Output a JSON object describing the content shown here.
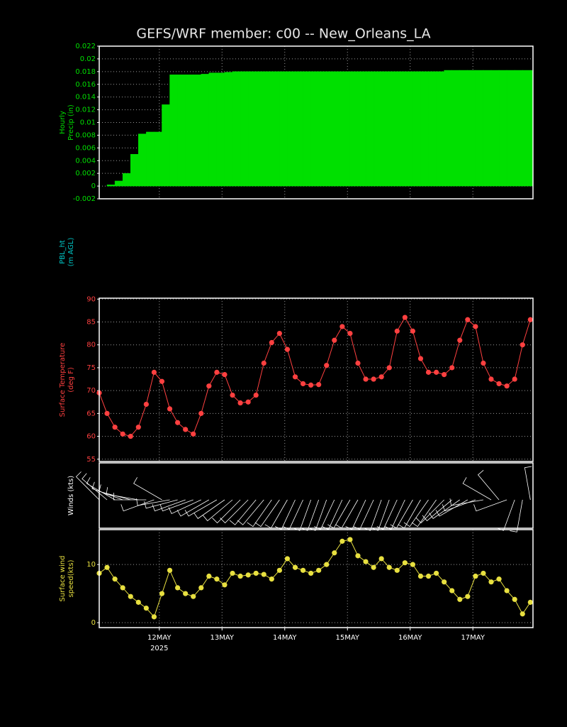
{
  "title": "GEFS/WRF  member: c00 -- New_Orleans_LA",
  "chart_data": [
    {
      "type": "bar",
      "ylabel": [
        "Hourly",
        "Precip (in)"
      ],
      "color": "#00e000",
      "grid": true,
      "x": [
        1,
        4,
        7,
        10,
        13,
        16,
        19,
        22,
        25,
        28,
        31,
        34,
        37,
        40,
        43,
        46,
        49,
        52,
        55,
        58,
        61,
        64,
        67,
        70,
        73,
        76,
        79,
        82,
        85,
        88,
        91,
        94,
        97,
        100,
        103,
        106,
        109,
        112,
        115,
        118,
        121,
        124,
        127,
        130,
        133,
        136,
        139,
        142,
        145,
        148,
        151,
        154,
        157,
        160,
        163,
        166
      ],
      "xlim": [
        1,
        167
      ],
      "xticks": [
        24,
        48,
        72,
        96,
        120,
        144
      ],
      "ylim": [
        -0.002,
        0.022
      ],
      "yticks": [
        -0.002,
        0,
        0.002,
        0.004,
        0.006,
        0.008,
        0.01,
        0.012,
        0.014,
        0.016,
        0.018,
        0.02,
        0.022
      ],
      "values": [
        0,
        0.0002,
        0.0008,
        0.002,
        0.005,
        0.0082,
        0.0085,
        0.0085,
        0.0128,
        0.0175,
        0.0175,
        0.0175,
        0.0175,
        0.0176,
        0.0178,
        0.0178,
        0.0179,
        0.018,
        0.018,
        0.018,
        0.018,
        0.018,
        0.018,
        0.018,
        0.018,
        0.018,
        0.018,
        0.018,
        0.018,
        0.018,
        0.018,
        0.018,
        0.018,
        0.018,
        0.018,
        0.018,
        0.018,
        0.018,
        0.018,
        0.018,
        0.018,
        0.018,
        0.018,
        0.018,
        0.0182,
        0.0182,
        0.0182,
        0.0182,
        0.0182,
        0.0182,
        0.0182,
        0.0182,
        0.0182,
        0.0182,
        0.0182,
        0.0182
      ]
    },
    {
      "type": "empty",
      "ylabel": [
        "PBL_ht",
        "(m AGL)"
      ],
      "color": "#00c8c8"
    },
    {
      "type": "line",
      "ylabel": [
        "Surface Temperature",
        "(deg F)"
      ],
      "color": "#ff4040",
      "grid": true,
      "x": [
        1,
        4,
        7,
        10,
        13,
        16,
        19,
        22,
        25,
        28,
        31,
        34,
        37,
        40,
        43,
        46,
        49,
        52,
        55,
        58,
        61,
        64,
        67,
        70,
        73,
        76,
        79,
        82,
        85,
        88,
        91,
        94,
        97,
        100,
        103,
        106,
        109,
        112,
        115,
        118,
        121,
        124,
        127,
        130,
        133,
        136,
        139,
        142,
        145,
        148,
        151,
        154,
        157,
        160,
        163,
        166
      ],
      "xlim": [
        1,
        167
      ],
      "xticks": [
        24,
        48,
        72,
        96,
        120,
        144
      ],
      "ylim": [
        54.5,
        90.2
      ],
      "yticks": [
        55,
        60,
        65,
        70,
        75,
        80,
        85,
        90
      ],
      "values": [
        69.5,
        65,
        62,
        60.5,
        60,
        62,
        67,
        74,
        72,
        66,
        63,
        61.5,
        60.5,
        65,
        71,
        74,
        73.5,
        69,
        67.3,
        67.5,
        69,
        76,
        80.5,
        82.5,
        79,
        73,
        71.5,
        71.2,
        71.3,
        75.5,
        81,
        84,
        82.5,
        76,
        72.5,
        72.5,
        73,
        75,
        83,
        86,
        83,
        77,
        74,
        74,
        73.5,
        75,
        81,
        85.5,
        84,
        76,
        72.5,
        71.5,
        71,
        72.5,
        80,
        85.5
      ]
    },
    {
      "type": "barbs",
      "ylabel": [
        "Winds (kts)"
      ],
      "color": "#ffffff",
      "grid": false,
      "x": [
        1,
        4,
        7,
        10,
        13,
        16,
        19,
        22,
        25,
        28,
        31,
        34,
        37,
        40,
        43,
        46,
        49,
        52,
        55,
        58,
        61,
        64,
        67,
        70,
        73,
        76,
        79,
        82,
        85,
        88,
        91,
        94,
        97,
        100,
        103,
        106,
        109,
        112,
        115,
        118,
        121,
        124,
        127,
        130,
        133,
        136,
        139,
        142,
        145,
        148,
        151,
        154,
        157,
        160,
        163,
        166
      ],
      "xlim": [
        1,
        167
      ],
      "directions": [
        315,
        310,
        300,
        290,
        285,
        280,
        270,
        250,
        300,
        260,
        255,
        250,
        250,
        245,
        240,
        240,
        235,
        230,
        225,
        225,
        220,
        220,
        215,
        215,
        210,
        205,
        205,
        200,
        200,
        200,
        205,
        205,
        210,
        210,
        205,
        205,
        200,
        200,
        205,
        205,
        210,
        210,
        215,
        215,
        225,
        230,
        235,
        240,
        250,
        260,
        300,
        320,
        250,
        200,
        190,
        350
      ]
    },
    {
      "type": "line",
      "ylabel": [
        "Surface wind",
        "speed(kts)"
      ],
      "color": "#e8e040",
      "grid": true,
      "x": [
        1,
        4,
        7,
        10,
        13,
        16,
        19,
        22,
        25,
        28,
        31,
        34,
        37,
        40,
        43,
        46,
        49,
        52,
        55,
        58,
        61,
        64,
        67,
        70,
        73,
        76,
        79,
        82,
        85,
        88,
        91,
        94,
        97,
        100,
        103,
        106,
        109,
        112,
        115,
        118,
        121,
        124,
        127,
        130,
        133,
        136,
        139,
        142,
        145,
        148,
        151,
        154,
        157,
        160,
        163,
        166
      ],
      "xlim": [
        1,
        167
      ],
      "xticks": [
        {
          "value": 24,
          "label": "12MAY"
        },
        {
          "value": 48,
          "label": "13MAY"
        },
        {
          "value": 72,
          "label": "14MAY"
        },
        {
          "value": 96,
          "label": "15MAY"
        },
        {
          "value": 120,
          "label": "16MAY"
        },
        {
          "value": 144,
          "label": "17MAY"
        }
      ],
      "year": "2025",
      "ylim": [
        -0.85,
        16
      ],
      "yticks": [
        0,
        10
      ],
      "values": [
        8.5,
        9.5,
        7.5,
        6,
        4.5,
        3.5,
        2.5,
        1,
        5,
        9,
        6,
        5,
        4.5,
        6,
        8,
        7.5,
        6.5,
        8.5,
        8,
        8.2,
        8.5,
        8.3,
        7.5,
        9,
        11,
        9.5,
        9,
        8.5,
        9,
        10,
        12,
        14,
        14.3,
        11.5,
        10.5,
        9.5,
        11,
        9.5,
        9,
        10.3,
        10,
        8,
        8,
        8.5,
        7,
        5.5,
        4,
        4.5,
        8,
        8.5,
        7,
        7.5,
        5.5,
        4,
        1.5,
        3.5
      ]
    }
  ]
}
